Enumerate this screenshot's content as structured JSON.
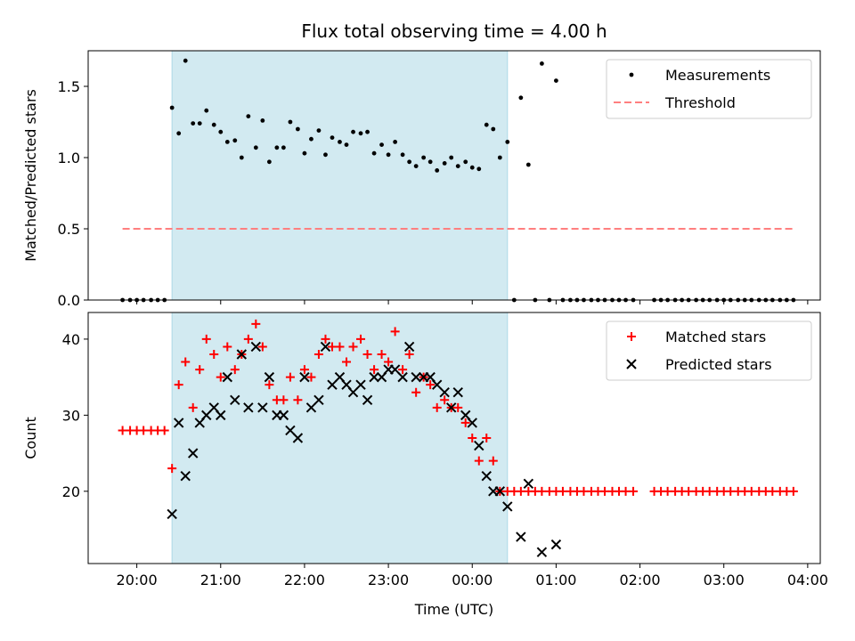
{
  "title": "Flux total observing time = 4.00 h",
  "colors": {
    "measurement": "#000000",
    "threshold": "#ff7f7f",
    "matched": "#ff0000",
    "predicted": "#000000",
    "window": "#add8e6"
  },
  "chart_data": [
    {
      "type": "scatter",
      "name": "ratio-panel",
      "ylabel": "Matched/Predicted stars",
      "xlabel": "",
      "xlim": [
        19.42,
        28.15
      ],
      "ylim": [
        0.0,
        1.75
      ],
      "yticks": [
        0.0,
        0.5,
        1.0,
        1.5
      ],
      "ytick_labels": [
        "0.0",
        "0.5",
        "1.0",
        "1.5"
      ],
      "xticks": [
        20,
        21,
        22,
        23,
        24,
        25,
        26,
        27,
        28
      ],
      "observing_window": [
        20.42,
        24.42
      ],
      "legend": {
        "position": "top-right",
        "entries": [
          "Measurements",
          "Threshold"
        ]
      },
      "series": [
        {
          "name": "Measurements",
          "marker": "dot",
          "points": [
            [
              19.83,
              0.0
            ],
            [
              19.92,
              0.0
            ],
            [
              20.0,
              0.0
            ],
            [
              20.08,
              0.0
            ],
            [
              20.17,
              0.0
            ],
            [
              20.25,
              0.0
            ],
            [
              20.33,
              0.0
            ],
            [
              20.42,
              1.35
            ],
            [
              20.5,
              1.17
            ],
            [
              20.58,
              1.68
            ],
            [
              20.67,
              1.24
            ],
            [
              20.75,
              1.24
            ],
            [
              20.83,
              1.33
            ],
            [
              20.92,
              1.23
            ],
            [
              21.0,
              1.18
            ],
            [
              21.08,
              1.11
            ],
            [
              21.17,
              1.12
            ],
            [
              21.25,
              1.0
            ],
            [
              21.33,
              1.29
            ],
            [
              21.42,
              1.07
            ],
            [
              21.5,
              1.26
            ],
            [
              21.58,
              0.97
            ],
            [
              21.67,
              1.07
            ],
            [
              21.75,
              1.07
            ],
            [
              21.83,
              1.25
            ],
            [
              21.92,
              1.2
            ],
            [
              22.0,
              1.03
            ],
            [
              22.08,
              1.13
            ],
            [
              22.17,
              1.19
            ],
            [
              22.25,
              1.02
            ],
            [
              22.33,
              1.14
            ],
            [
              22.42,
              1.11
            ],
            [
              22.5,
              1.09
            ],
            [
              22.58,
              1.18
            ],
            [
              22.67,
              1.17
            ],
            [
              22.75,
              1.18
            ],
            [
              22.83,
              1.03
            ],
            [
              22.92,
              1.09
            ],
            [
              23.0,
              1.02
            ],
            [
              23.08,
              1.11
            ],
            [
              23.17,
              1.02
            ],
            [
              23.25,
              0.97
            ],
            [
              23.33,
              0.94
            ],
            [
              23.42,
              1.0
            ],
            [
              23.5,
              0.97
            ],
            [
              23.58,
              0.91
            ],
            [
              23.67,
              0.96
            ],
            [
              23.75,
              1.0
            ],
            [
              23.83,
              0.94
            ],
            [
              23.92,
              0.97
            ],
            [
              24.0,
              0.93
            ],
            [
              24.08,
              0.92
            ],
            [
              24.17,
              1.23
            ],
            [
              24.25,
              1.2
            ],
            [
              24.33,
              1.0
            ],
            [
              24.42,
              1.11
            ],
            [
              24.5,
              0.0
            ],
            [
              24.58,
              1.42
            ],
            [
              24.67,
              0.95
            ],
            [
              24.75,
              0.0
            ],
            [
              24.83,
              1.66
            ],
            [
              24.92,
              0.0
            ],
            [
              25.0,
              1.54
            ],
            [
              25.08,
              0.0
            ],
            [
              25.17,
              0.0
            ],
            [
              25.25,
              0.0
            ],
            [
              25.33,
              0.0
            ],
            [
              25.42,
              0.0
            ],
            [
              25.5,
              0.0
            ],
            [
              25.58,
              0.0
            ],
            [
              25.67,
              0.0
            ],
            [
              25.75,
              0.0
            ],
            [
              25.83,
              0.0
            ],
            [
              25.92,
              0.0
            ],
            [
              26.17,
              0.0
            ],
            [
              26.25,
              0.0
            ],
            [
              26.33,
              0.0
            ],
            [
              26.42,
              0.0
            ],
            [
              26.5,
              0.0
            ],
            [
              26.58,
              0.0
            ],
            [
              26.67,
              0.0
            ],
            [
              26.75,
              0.0
            ],
            [
              26.83,
              0.0
            ],
            [
              26.92,
              0.0
            ],
            [
              27.0,
              0.0
            ],
            [
              27.08,
              0.0
            ],
            [
              27.17,
              0.0
            ],
            [
              27.25,
              0.0
            ],
            [
              27.33,
              0.0
            ],
            [
              27.42,
              0.0
            ],
            [
              27.5,
              0.0
            ],
            [
              27.58,
              0.0
            ],
            [
              27.67,
              0.0
            ],
            [
              27.75,
              0.0
            ],
            [
              27.83,
              0.0
            ]
          ]
        },
        {
          "name": "Threshold",
          "marker": "dashed-line",
          "points": [
            [
              19.83,
              0.5
            ],
            [
              27.83,
              0.5
            ]
          ]
        }
      ]
    },
    {
      "type": "scatter",
      "name": "count-panel",
      "ylabel": "Count",
      "xlabel": "Time (UTC)",
      "xlim": [
        19.42,
        28.15
      ],
      "ylim": [
        10.5,
        43.5
      ],
      "yticks": [
        20,
        30,
        40
      ],
      "ytick_labels": [
        "20",
        "30",
        "40"
      ],
      "xticks": [
        20,
        21,
        22,
        23,
        24,
        25,
        26,
        27,
        28
      ],
      "xtick_labels": [
        "20:00",
        "21:00",
        "22:00",
        "23:00",
        "00:00",
        "01:00",
        "02:00",
        "03:00",
        "04:00"
      ],
      "observing_window": [
        20.42,
        24.42
      ],
      "legend": {
        "position": "top-right",
        "entries": [
          "Matched stars",
          "Predicted stars"
        ]
      },
      "series": [
        {
          "name": "Matched stars",
          "marker": "plus",
          "points": [
            [
              19.83,
              28
            ],
            [
              19.92,
              28
            ],
            [
              20.0,
              28
            ],
            [
              20.08,
              28
            ],
            [
              20.17,
              28
            ],
            [
              20.25,
              28
            ],
            [
              20.33,
              28
            ],
            [
              20.42,
              23
            ],
            [
              20.5,
              34
            ],
            [
              20.58,
              37
            ],
            [
              20.67,
              31
            ],
            [
              20.75,
              36
            ],
            [
              20.83,
              40
            ],
            [
              20.92,
              38
            ],
            [
              21.0,
              35
            ],
            [
              21.08,
              39
            ],
            [
              21.17,
              36
            ],
            [
              21.25,
              38
            ],
            [
              21.33,
              40
            ],
            [
              21.42,
              42
            ],
            [
              21.5,
              39
            ],
            [
              21.58,
              34
            ],
            [
              21.67,
              32
            ],
            [
              21.75,
              32
            ],
            [
              21.83,
              35
            ],
            [
              21.92,
              32
            ],
            [
              22.0,
              36
            ],
            [
              22.08,
              35
            ],
            [
              22.17,
              38
            ],
            [
              22.25,
              40
            ],
            [
              22.33,
              39
            ],
            [
              22.42,
              39
            ],
            [
              22.5,
              37
            ],
            [
              22.58,
              39
            ],
            [
              22.67,
              40
            ],
            [
              22.75,
              38
            ],
            [
              22.83,
              36
            ],
            [
              22.92,
              38
            ],
            [
              23.0,
              37
            ],
            [
              23.08,
              41
            ],
            [
              23.17,
              36
            ],
            [
              23.25,
              38
            ],
            [
              23.33,
              33
            ],
            [
              23.42,
              35
            ],
            [
              23.5,
              34
            ],
            [
              23.58,
              31
            ],
            [
              23.67,
              32
            ],
            [
              23.75,
              31
            ],
            [
              23.83,
              31
            ],
            [
              23.92,
              29
            ],
            [
              24.0,
              27
            ],
            [
              24.08,
              24
            ],
            [
              24.17,
              27
            ],
            [
              24.25,
              24
            ],
            [
              24.33,
              20
            ],
            [
              24.42,
              20
            ],
            [
              24.5,
              20
            ],
            [
              24.58,
              20
            ],
            [
              24.67,
              20
            ],
            [
              24.75,
              20
            ],
            [
              24.83,
              20
            ],
            [
              24.92,
              20
            ],
            [
              25.0,
              20
            ],
            [
              25.08,
              20
            ],
            [
              25.17,
              20
            ],
            [
              25.25,
              20
            ],
            [
              25.33,
              20
            ],
            [
              25.42,
              20
            ],
            [
              25.5,
              20
            ],
            [
              25.58,
              20
            ],
            [
              25.67,
              20
            ],
            [
              25.75,
              20
            ],
            [
              25.83,
              20
            ],
            [
              25.92,
              20
            ],
            [
              26.17,
              20
            ],
            [
              26.25,
              20
            ],
            [
              26.33,
              20
            ],
            [
              26.42,
              20
            ],
            [
              26.5,
              20
            ],
            [
              26.58,
              20
            ],
            [
              26.67,
              20
            ],
            [
              26.75,
              20
            ],
            [
              26.83,
              20
            ],
            [
              26.92,
              20
            ],
            [
              27.0,
              20
            ],
            [
              27.08,
              20
            ],
            [
              27.17,
              20
            ],
            [
              27.25,
              20
            ],
            [
              27.33,
              20
            ],
            [
              27.42,
              20
            ],
            [
              27.5,
              20
            ],
            [
              27.58,
              20
            ],
            [
              27.67,
              20
            ],
            [
              27.75,
              20
            ],
            [
              27.83,
              20
            ]
          ]
        },
        {
          "name": "Predicted stars",
          "marker": "x",
          "points": [
            [
              20.42,
              17
            ],
            [
              20.5,
              29
            ],
            [
              20.58,
              22
            ],
            [
              20.67,
              25
            ],
            [
              20.75,
              29
            ],
            [
              20.83,
              30
            ],
            [
              20.92,
              31
            ],
            [
              21.0,
              30
            ],
            [
              21.08,
              35
            ],
            [
              21.17,
              32
            ],
            [
              21.25,
              38
            ],
            [
              21.33,
              31
            ],
            [
              21.42,
              39
            ],
            [
              21.5,
              31
            ],
            [
              21.58,
              35
            ],
            [
              21.67,
              30
            ],
            [
              21.75,
              30
            ],
            [
              21.83,
              28
            ],
            [
              21.92,
              27
            ],
            [
              22.0,
              35
            ],
            [
              22.08,
              31
            ],
            [
              22.17,
              32
            ],
            [
              22.25,
              39
            ],
            [
              22.33,
              34
            ],
            [
              22.42,
              35
            ],
            [
              22.5,
              34
            ],
            [
              22.58,
              33
            ],
            [
              22.67,
              34
            ],
            [
              22.75,
              32
            ],
            [
              22.83,
              35
            ],
            [
              22.92,
              35
            ],
            [
              23.0,
              36
            ],
            [
              23.08,
              36
            ],
            [
              23.17,
              35
            ],
            [
              23.25,
              39
            ],
            [
              23.33,
              35
            ],
            [
              23.42,
              35
            ],
            [
              23.5,
              35
            ],
            [
              23.58,
              34
            ],
            [
              23.67,
              33
            ],
            [
              23.75,
              31
            ],
            [
              23.83,
              33
            ],
            [
              23.92,
              30
            ],
            [
              24.0,
              29
            ],
            [
              24.08,
              26
            ],
            [
              24.17,
              22
            ],
            [
              24.25,
              20
            ],
            [
              24.33,
              20
            ],
            [
              24.42,
              18
            ],
            [
              24.58,
              14
            ],
            [
              24.67,
              21
            ],
            [
              24.83,
              12
            ],
            [
              25.0,
              13
            ]
          ]
        }
      ]
    }
  ]
}
